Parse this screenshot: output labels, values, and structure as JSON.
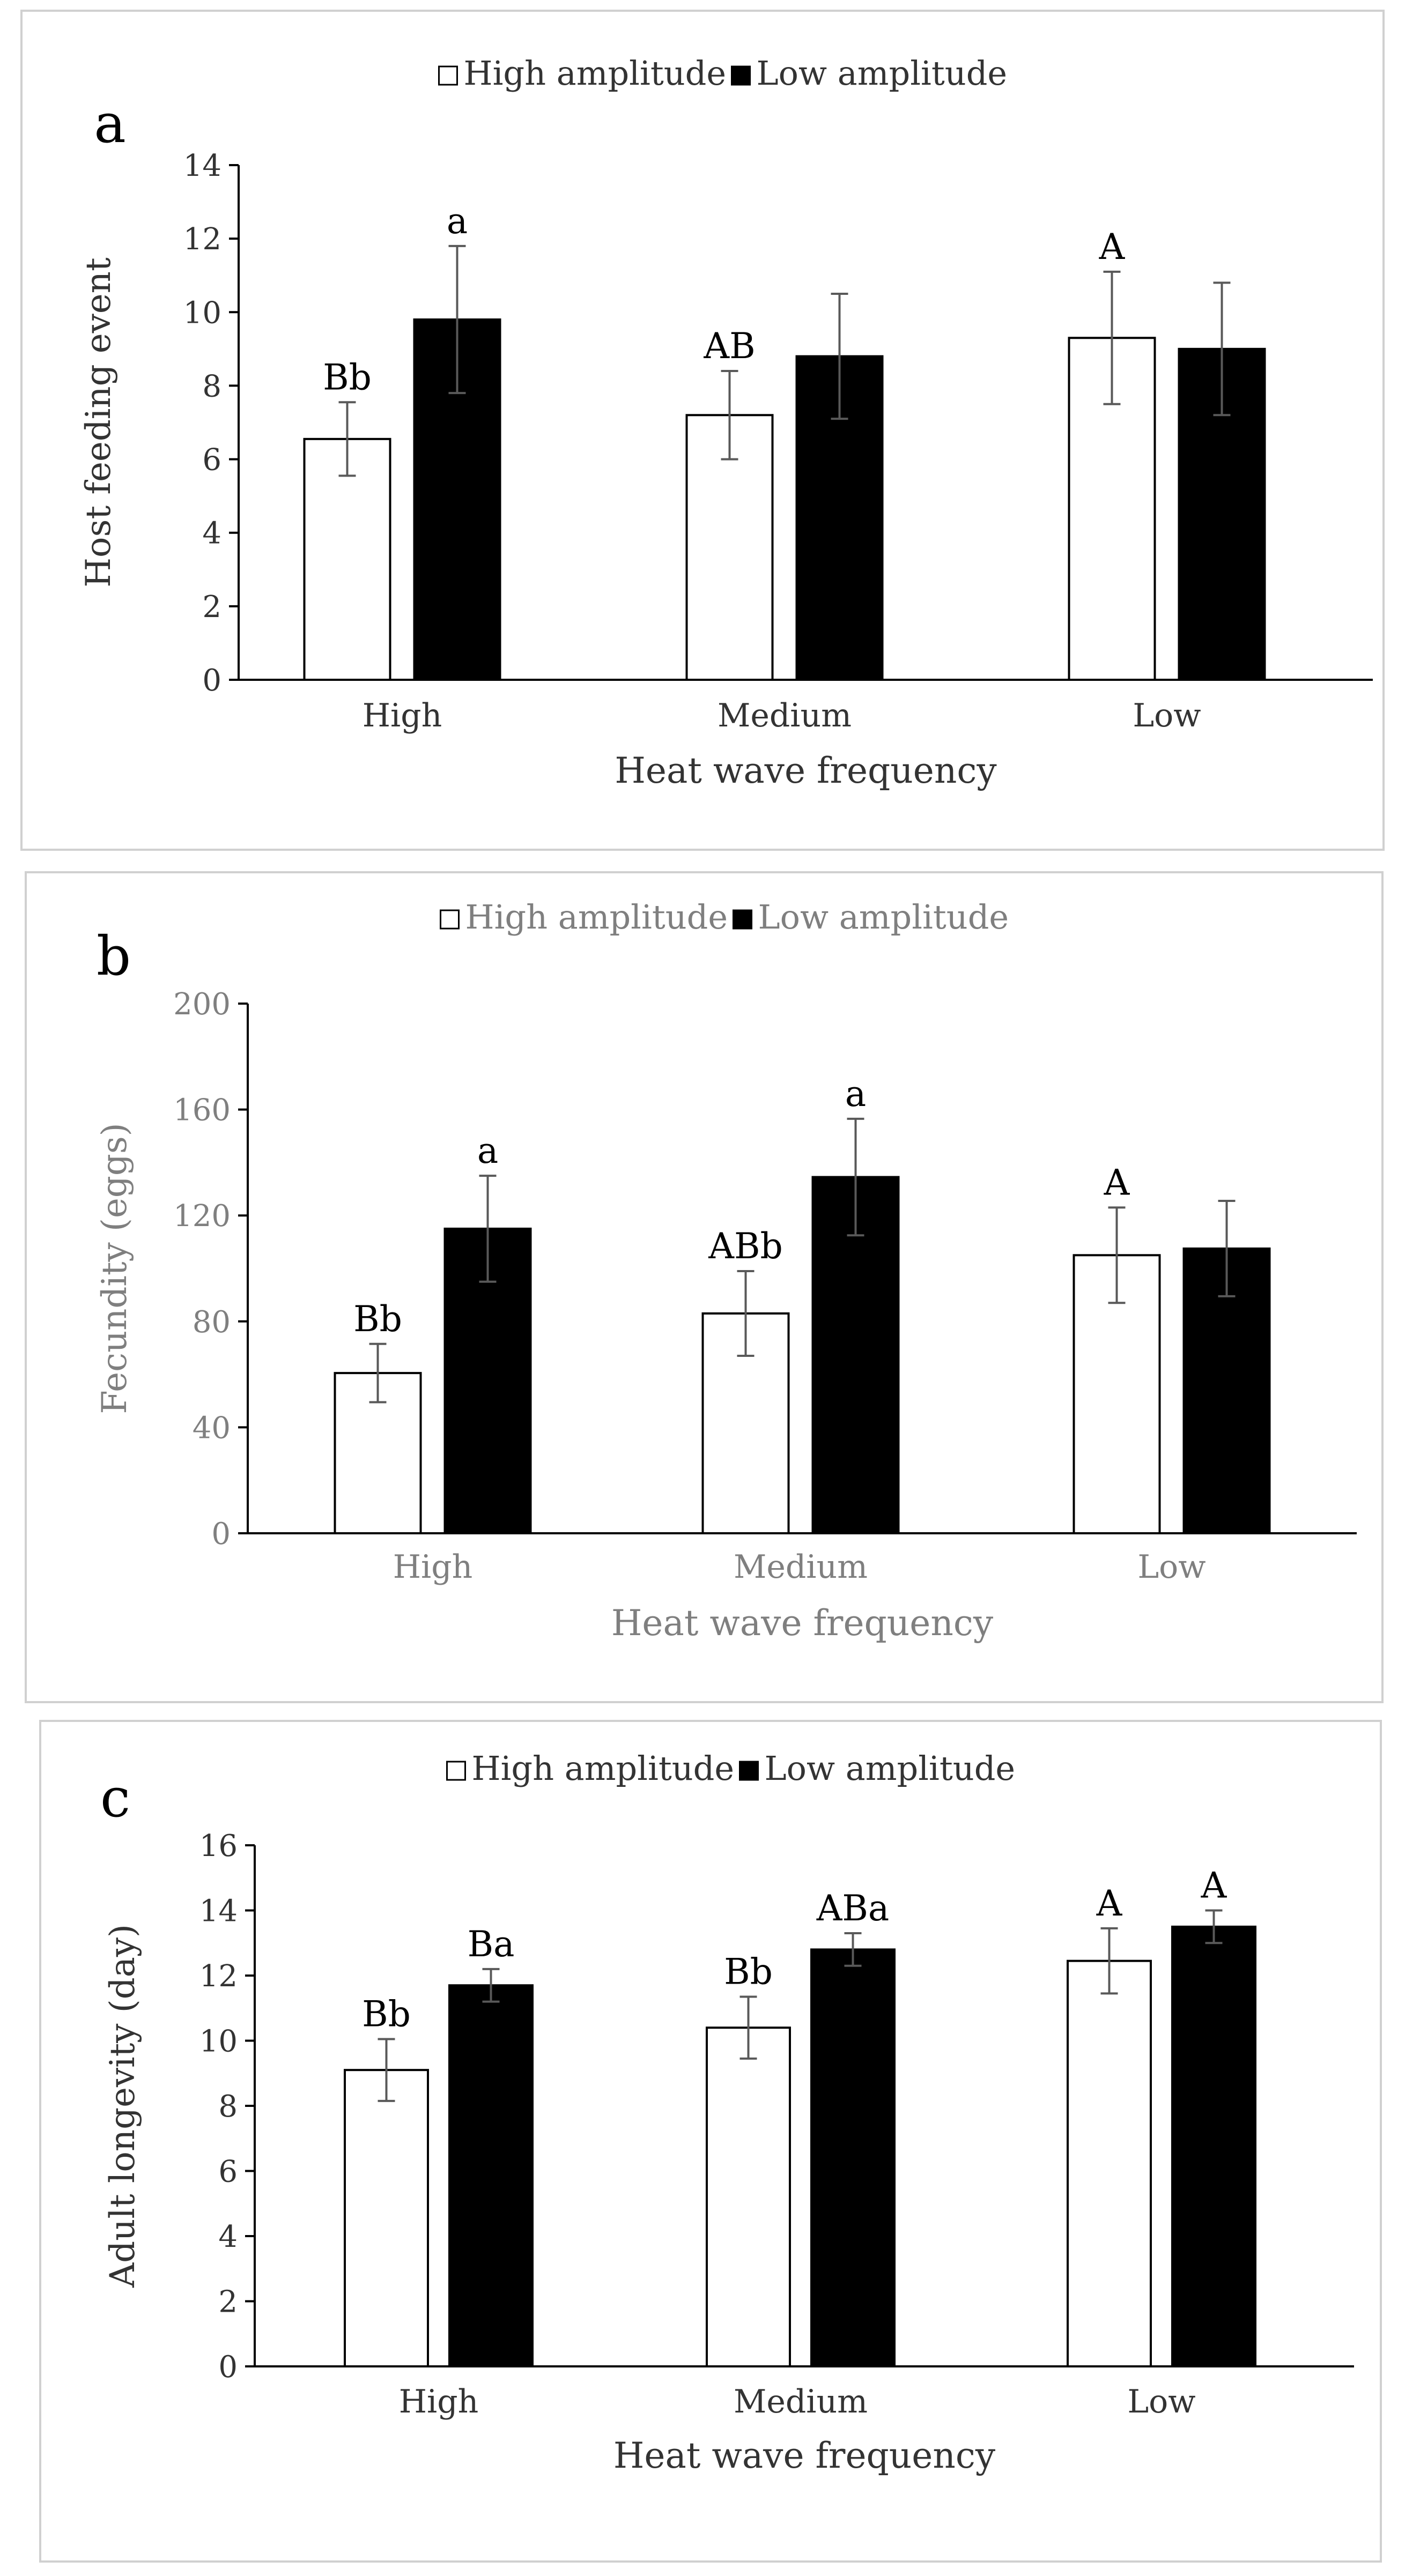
{
  "chart_data": [
    {
      "type": "bar",
      "panel_label": "a",
      "categories": [
        "High",
        "Medium",
        "Low"
      ],
      "xlabel": "Heat wave frequency",
      "ylabel": "Host feeding event",
      "ylim": [
        0,
        14
      ],
      "yticks": [
        0,
        2,
        4,
        6,
        8,
        10,
        12,
        14
      ],
      "legend_position": "top-center",
      "grid": false,
      "series": [
        {
          "name": "High amplitude",
          "color": "#ffffff",
          "values": [
            6.55,
            7.2,
            9.3
          ],
          "errors": [
            1.0,
            1.2,
            1.8
          ],
          "annotations": [
            "Bb",
            "AB",
            "A"
          ]
        },
        {
          "name": "Low amplitude",
          "color": "#000000",
          "values": [
            9.8,
            8.8,
            9.0
          ],
          "errors": [
            2.0,
            1.7,
            1.8
          ],
          "annotations": [
            "a",
            "",
            ""
          ]
        }
      ]
    },
    {
      "type": "bar",
      "panel_label": "b",
      "categories": [
        "High",
        "Medium",
        "Low"
      ],
      "xlabel": "Heat wave frequency",
      "ylabel": "Fecundity (eggs)",
      "ylim": [
        0,
        200
      ],
      "yticks": [
        0,
        40,
        80,
        120,
        160,
        200
      ],
      "legend_position": "top-center",
      "grid": false,
      "series": [
        {
          "name": "High amplitude",
          "color": "#ffffff",
          "values": [
            60.5,
            83,
            105
          ],
          "errors": [
            11,
            16,
            18
          ],
          "annotations": [
            "Bb",
            "ABb",
            "A"
          ]
        },
        {
          "name": "Low amplitude",
          "color": "#000000",
          "values": [
            115,
            134.5,
            107.5
          ],
          "errors": [
            20,
            22,
            18
          ],
          "annotations": [
            "a",
            "a",
            ""
          ]
        }
      ]
    },
    {
      "type": "bar",
      "panel_label": "c",
      "categories": [
        "High",
        "Medium",
        "Low"
      ],
      "xlabel": "Heat wave frequency",
      "ylabel": "Adult longevity (day)",
      "ylim": [
        0,
        16
      ],
      "yticks": [
        0,
        2,
        4,
        6,
        8,
        10,
        12,
        14,
        16
      ],
      "legend_position": "top-center",
      "grid": false,
      "series": [
        {
          "name": "High amplitude",
          "color": "#ffffff",
          "values": [
            9.1,
            10.4,
            12.45
          ],
          "errors": [
            0.95,
            0.95,
            1.0
          ],
          "annotations": [
            "Bb",
            "Bb",
            "A"
          ]
        },
        {
          "name": "Low amplitude",
          "color": "#000000",
          "values": [
            11.7,
            12.8,
            13.5
          ],
          "errors": [
            0.5,
            0.5,
            0.5
          ],
          "annotations": [
            "Ba",
            "ABa",
            "A"
          ]
        }
      ]
    }
  ]
}
